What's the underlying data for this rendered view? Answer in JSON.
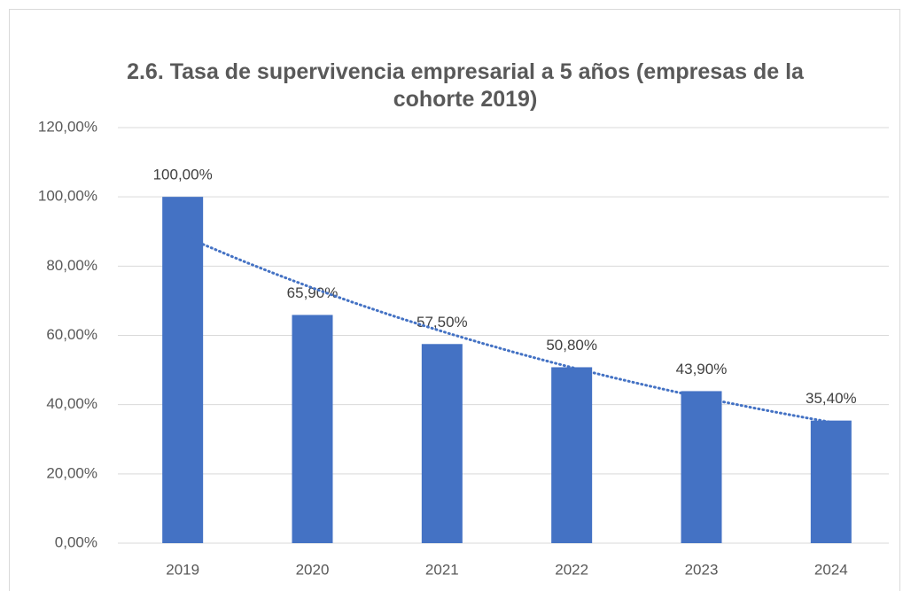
{
  "chart_data": {
    "type": "bar",
    "title": "2.6. Tasa de supervivencia empresarial a 5 años (empresas de la cohorte 2019)",
    "categories": [
      "2019",
      "2020",
      "2021",
      "2022",
      "2023",
      "2024"
    ],
    "values": [
      100,
      65.9,
      57.5,
      50.8,
      43.9,
      35.4
    ],
    "value_labels": [
      "100,00%",
      "65,90%",
      "57,50%",
      "50,80%",
      "43,90%",
      "35,40%"
    ],
    "color": "#4472c4",
    "ylim": [
      0,
      120
    ],
    "yticks": [
      {
        "value": 0,
        "label": "0,00%"
      },
      {
        "value": 20,
        "label": "20,00%"
      },
      {
        "value": 40,
        "label": "40,00%"
      },
      {
        "value": 60,
        "label": "60,00%"
      },
      {
        "value": 80,
        "label": "80,00%"
      },
      {
        "value": 100,
        "label": "100,00%"
      },
      {
        "value": 120,
        "label": "120,00%"
      }
    ],
    "grid": true,
    "trendline": "exponential",
    "trendline_color": "#4472c4"
  }
}
